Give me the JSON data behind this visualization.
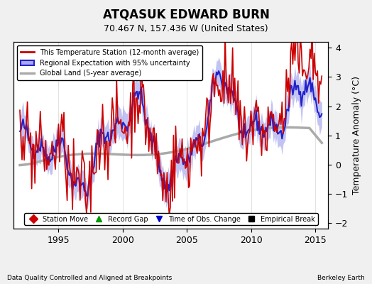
{
  "title": "ATQASUK EDWARD BURN",
  "subtitle": "70.467 N, 157.436 W (United States)",
  "xlabel_left": "Data Quality Controlled and Aligned at Breakpoints",
  "xlabel_right": "Berkeley Earth",
  "ylabel": "Temperature Anomaly (°C)",
  "legend_line1": "This Temperature Station (12-month average)",
  "legend_line2": "Regional Expectation with 95% uncertainty",
  "legend_line3": "Global Land (5-year average)",
  "legend_markers": [
    {
      "marker": "D",
      "color": "#cc0000",
      "label": "Station Move"
    },
    {
      "marker": "^",
      "color": "#009900",
      "label": "Record Gap"
    },
    {
      "marker": "v",
      "color": "#0000cc",
      "label": "Time of Obs. Change"
    },
    {
      "marker": "s",
      "color": "#000000",
      "label": "Empirical Break"
    }
  ],
  "xlim": [
    1991.5,
    2016.0
  ],
  "ylim": [
    -2.2,
    4.2
  ],
  "yticks": [
    -2,
    -1,
    0,
    1,
    2,
    3,
    4
  ],
  "xticks": [
    1995,
    2000,
    2005,
    2010,
    2015
  ],
  "background_color": "#f0f0f0",
  "plot_bg_color": "#ffffff",
  "region_color": "#aaaaee",
  "region_line_color": "#2222cc",
  "station_color": "#cc0000",
  "global_color": "#aaaaaa",
  "seed": 42
}
